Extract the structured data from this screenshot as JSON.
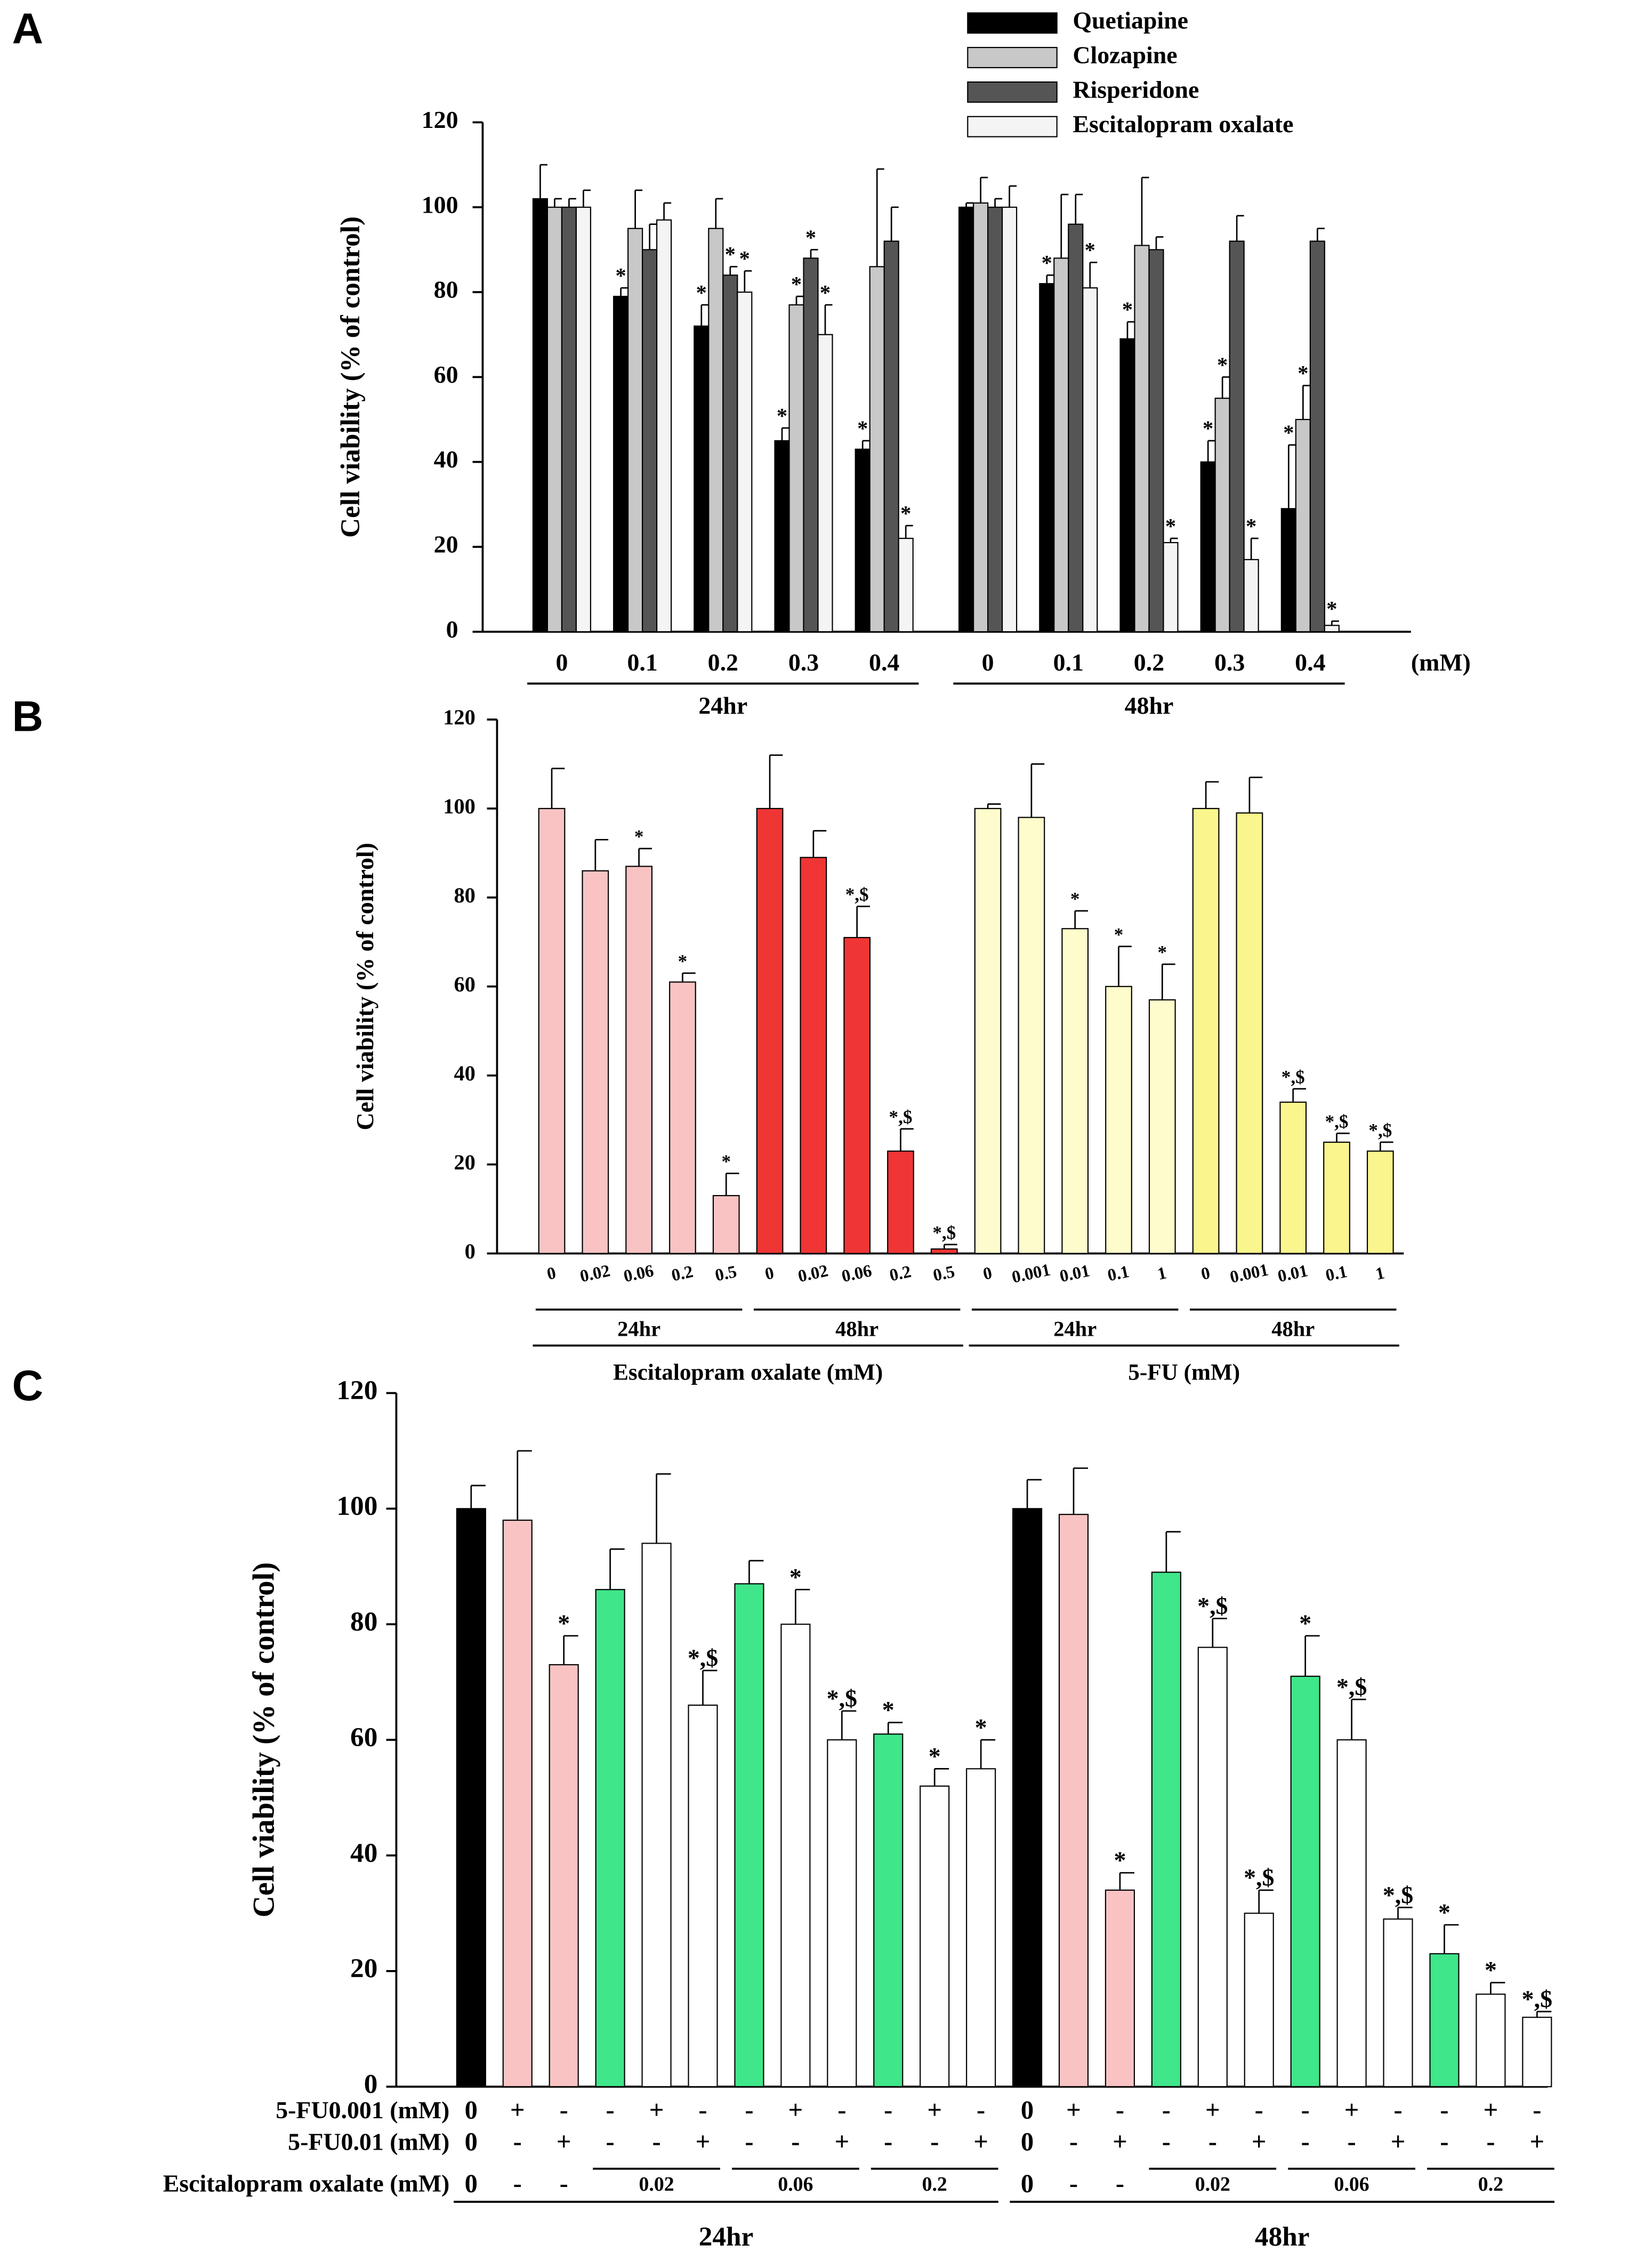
{
  "chart_data": [
    {
      "type": "bar",
      "panel": "A",
      "ylabel": "Cell viability (% of control)",
      "categories": [
        "0",
        "0.1",
        "0.2",
        "0.3",
        "0.4",
        "0",
        "0.1",
        "0.2",
        "0.3",
        "0.4"
      ],
      "x_unit": "(mM)",
      "groups": [
        "24hr",
        "48hr"
      ],
      "ylim": [
        0,
        120
      ],
      "yticks": [
        0,
        20,
        40,
        60,
        80,
        100,
        120
      ],
      "series": [
        {
          "name": "Quetiapine",
          "color": "#000000",
          "values": [
            102,
            79,
            72,
            45,
            43,
            100,
            82,
            69,
            40,
            29
          ],
          "errors": [
            8,
            2,
            5,
            3,
            2,
            1,
            2,
            4,
            5,
            15
          ],
          "significance": [
            null,
            "*",
            "*",
            "*",
            "*",
            null,
            "*",
            "*",
            "*",
            "*"
          ]
        },
        {
          "name": "Clozapine",
          "color": "#c8c8c8",
          "values": [
            100,
            95,
            95,
            77,
            86,
            101,
            88,
            91,
            55,
            50
          ],
          "errors": [
            2,
            9,
            7,
            2,
            23,
            6,
            15,
            16,
            5,
            8
          ],
          "significance": [
            null,
            null,
            null,
            "*",
            null,
            null,
            null,
            null,
            "*",
            "*"
          ]
        },
        {
          "name": "Risperidone",
          "color": "#555555",
          "values": [
            100,
            90,
            84,
            88,
            92,
            100,
            96,
            90,
            92,
            92
          ],
          "errors": [
            2,
            6,
            2,
            2,
            8,
            2,
            7,
            3,
            6,
            3
          ],
          "significance": [
            null,
            null,
            "*",
            "*",
            null,
            null,
            null,
            null,
            null,
            null
          ]
        },
        {
          "name": "Escitalopram oxalate",
          "color": "#f4f4f4",
          "values": [
            100,
            97,
            80,
            70,
            22,
            100,
            81,
            21,
            17,
            1.5
          ],
          "errors": [
            4,
            4,
            5,
            7,
            3,
            5,
            6,
            1,
            5,
            1
          ],
          "significance": [
            null,
            null,
            "*",
            "*",
            "*",
            null,
            "*",
            "*",
            "*",
            "*"
          ]
        }
      ]
    },
    {
      "type": "bar",
      "panel": "B",
      "ylabel": "Cell viability (% of control)",
      "categories": [
        "0",
        "0.02",
        "0.06",
        "0.2",
        "0.5",
        "0",
        "0.02",
        "0.06",
        "0.2",
        "0.5",
        "0",
        "0.001",
        "0.01",
        "0.1",
        "1",
        "0",
        "0.001",
        "0.01",
        "0.1",
        "1"
      ],
      "groups": [
        "24hr",
        "48hr",
        "24hr",
        "48hr"
      ],
      "super_groups": [
        "Escitalopram oxalate (mM)",
        "5-FU (mM)"
      ],
      "ylim": [
        0,
        120
      ],
      "yticks": [
        0,
        20,
        40,
        60,
        80,
        100,
        120
      ],
      "values": [
        100,
        86,
        87,
        61,
        13,
        100,
        89,
        71,
        23,
        1,
        100,
        98,
        73,
        60,
        57,
        100,
        99,
        34,
        25,
        23
      ],
      "errors": [
        9,
        7,
        4,
        2,
        5,
        12,
        6,
        7,
        5,
        1,
        1,
        12,
        4,
        9,
        8,
        6,
        8,
        3,
        2,
        2
      ],
      "significance": [
        null,
        null,
        "*",
        "*",
        "*",
        null,
        null,
        "*,$",
        "*,$",
        "*,$",
        null,
        null,
        "*",
        "*",
        "*",
        null,
        null,
        "*,$",
        "*,$",
        "*,$"
      ],
      "colors": [
        "#f9c3c3",
        "#f9c3c3",
        "#f9c3c3",
        "#f9c3c3",
        "#f9c3c3",
        "#f03535",
        "#f03535",
        "#f03535",
        "#f03535",
        "#f03535",
        "#fefccc",
        "#fefccc",
        "#fefccc",
        "#fefccc",
        "#fefccc",
        "#faf58c",
        "#faf58c",
        "#faf58c",
        "#faf58c",
        "#faf58c"
      ]
    },
    {
      "type": "bar",
      "panel": "C",
      "ylabel": "Cell viability (% of control)",
      "groups": [
        "24hr",
        "48hr"
      ],
      "ylim": [
        0,
        120
      ],
      "yticks": [
        0,
        20,
        40,
        60,
        80,
        100,
        120
      ],
      "values": [
        100,
        98,
        73,
        86,
        94,
        66,
        87,
        80,
        60,
        61,
        52,
        55,
        100,
        99,
        34,
        89,
        76,
        30,
        71,
        60,
        29,
        23,
        16,
        12
      ],
      "errors": [
        4,
        12,
        5,
        7,
        12,
        6,
        4,
        6,
        5,
        2,
        3,
        5,
        5,
        8,
        3,
        7,
        5,
        4,
        7,
        7,
        2,
        5,
        2,
        1
      ],
      "significance": [
        null,
        null,
        "*",
        null,
        null,
        "*,$",
        null,
        "*",
        "*,$",
        "*",
        "*",
        "*",
        null,
        null,
        "*",
        null,
        "*,$",
        "*,$",
        "*",
        "*,$",
        "*,$",
        "*",
        "*",
        "*,$"
      ],
      "colors": [
        "#000000",
        "#f9c3c3",
        "#f9c3c3",
        "#3fe68a",
        "#ffffff",
        "#ffffff",
        "#3fe68a",
        "#ffffff",
        "#ffffff",
        "#3fe68a",
        "#ffffff",
        "#ffffff",
        "#000000",
        "#f9c3c3",
        "#f9c3c3",
        "#3fe68a",
        "#ffffff",
        "#ffffff",
        "#3fe68a",
        "#ffffff",
        "#ffffff",
        "#3fe68a",
        "#ffffff",
        "#ffffff"
      ],
      "rows": [
        {
          "label": "5-FU0.001 (mM)",
          "cells": [
            "0",
            "+",
            "-",
            "-",
            "+",
            "-",
            "-",
            "+",
            "-",
            "-",
            "+",
            "-",
            "0",
            "+",
            "-",
            "-",
            "+",
            "-",
            "-",
            "+",
            "-",
            "-",
            "+",
            "-"
          ]
        },
        {
          "label": "5-FU0.01 (mM)",
          "cells": [
            "0",
            "-",
            "+",
            "-",
            "-",
            "+",
            "-",
            "-",
            "+",
            "-",
            "-",
            "+",
            "0",
            "-",
            "+",
            "-",
            "-",
            "+",
            "-",
            "-",
            "+",
            "-",
            "-",
            "+"
          ]
        },
        {
          "label": "Escitalopram oxalate (mM)",
          "cells": [
            "0",
            "-",
            "-",
            "0.02",
            "0.06",
            "0.2",
            "0",
            "-",
            "-",
            "0.02",
            "0.06",
            "0.2"
          ]
        }
      ]
    }
  ]
}
